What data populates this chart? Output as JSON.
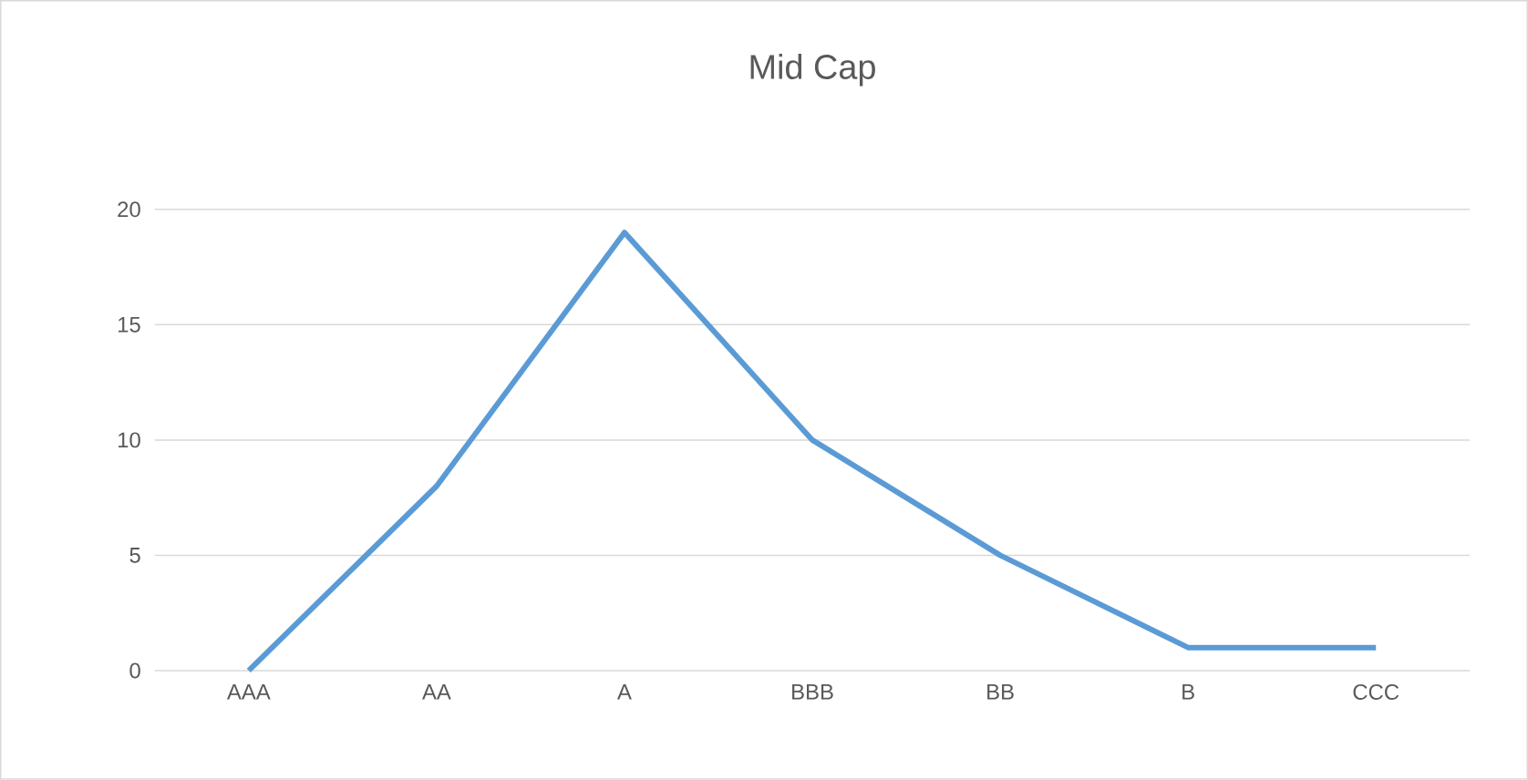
{
  "chart_data": {
    "type": "line",
    "title": "Mid Cap",
    "categories": [
      "AAA",
      "AA",
      "A",
      "BBB",
      "BB",
      "B",
      "CCC"
    ],
    "series": [
      {
        "color": "#5b9bd5",
        "values": [
          0,
          8,
          19,
          10,
          5,
          1,
          1
        ]
      }
    ],
    "ylim": [
      0,
      20
    ],
    "yticks": [
      0,
      5,
      10,
      15,
      20
    ],
    "grid": "y",
    "marker": "none",
    "line_style": "solid"
  }
}
